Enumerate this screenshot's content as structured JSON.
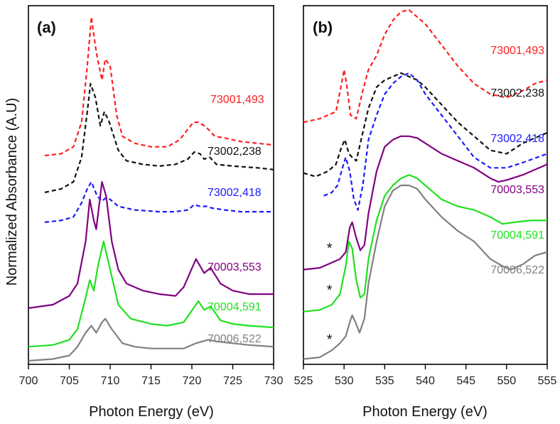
{
  "chart_data": [
    {
      "type": "line",
      "panel_label": "(a)",
      "xlabel": "Photon Energy (eV)",
      "ylabel": "Normalized Absorbance (A.U)",
      "xlim": [
        700,
        730
      ],
      "ylim": [
        0,
        100
      ],
      "xticks": [
        "700",
        "705",
        "710",
        "715",
        "720",
        "725",
        "730"
      ],
      "yticks_visible": false,
      "series": [
        {
          "name": "73001,493",
          "color": "#ff2020",
          "dash": true,
          "x": [
            702,
            704,
            705.5,
            706.5,
            707.2,
            707.7,
            708.3,
            709,
            709.4,
            710,
            710.8,
            711.5,
            713,
            715,
            717,
            718.5,
            719.5,
            720.2,
            720.8,
            721.5,
            722,
            722.8,
            724,
            726,
            728,
            730
          ],
          "y": [
            58.5,
            59,
            61,
            68,
            84,
            98,
            88,
            80,
            86,
            84,
            70,
            64,
            62,
            61,
            61,
            63,
            66,
            68,
            68,
            67,
            66,
            64,
            63.5,
            62.5,
            62,
            61.5
          ]
        },
        {
          "name": "73002,238",
          "color": "#111111",
          "dash": true,
          "x": [
            702,
            704,
            705.5,
            706.5,
            707.2,
            707.6,
            708.2,
            708.8,
            709.3,
            709.9,
            711,
            712,
            714,
            716,
            718,
            719.5,
            720.3,
            721,
            721.5,
            722.2,
            723,
            725,
            728,
            730
          ],
          "y": [
            48,
            49,
            51,
            58,
            71,
            79,
            75,
            67,
            71,
            68,
            60,
            57,
            56,
            55.5,
            56,
            57.5,
            59.5,
            59,
            57.5,
            58,
            56,
            55.5,
            55,
            54.5
          ]
        },
        {
          "name": "73002,418",
          "color": "#1a1aff",
          "dash": true,
          "x": [
            702,
            704,
            705.5,
            706.5,
            707.2,
            707.7,
            708.4,
            709,
            709.5,
            710,
            711,
            713,
            716,
            718,
            719.5,
            720.3,
            721,
            721.8,
            722.5,
            724,
            726,
            728,
            730
          ],
          "y": [
            39.5,
            40,
            41,
            45,
            49,
            51,
            47,
            45.5,
            46.5,
            46,
            44,
            43,
            42.5,
            42.5,
            43,
            44.5,
            44,
            44,
            43.5,
            43,
            42.5,
            42.5,
            42.5
          ]
        },
        {
          "name": "70003,553",
          "color": "#800080",
          "dash": false,
          "x": [
            700,
            703,
            705,
            706,
            707,
            707.5,
            708,
            708.3,
            709,
            709.5,
            710.2,
            711,
            712,
            714,
            716,
            718,
            719,
            720.5,
            721.5,
            722.3,
            723.5,
            725,
            727,
            730
          ],
          "y": [
            15,
            16,
            18.5,
            22,
            34,
            46,
            40,
            37.5,
            51,
            47,
            34,
            26,
            22,
            20,
            19,
            18.5,
            21,
            29,
            25,
            26.5,
            22,
            20,
            19,
            19
          ]
        },
        {
          "name": "70004,591",
          "color": "#20e020",
          "dash": false,
          "x": [
            700,
            703,
            705,
            706,
            707,
            707.5,
            708,
            708.5,
            709.2,
            709.8,
            711,
            712.5,
            715,
            717,
            719,
            720.8,
            721.5,
            722.3,
            723.5,
            725,
            727,
            730
          ],
          "y": [
            4,
            4.5,
            6,
            9,
            18,
            23,
            20,
            27,
            34,
            28,
            16,
            12,
            10.5,
            10,
            11,
            17,
            14.5,
            15.5,
            11.5,
            10.5,
            10,
            9.5
          ]
        },
        {
          "name": "70006,522",
          "color": "#808080",
          "dash": false,
          "x": [
            700,
            703,
            705,
            706,
            707,
            707.7,
            708.3,
            709,
            709.4,
            710.2,
            711.5,
            713,
            715,
            717,
            719,
            720.5,
            722,
            723,
            725,
            727,
            730
          ],
          "y": [
            0,
            0.5,
            1.5,
            4,
            8,
            10,
            8,
            11,
            12,
            9,
            5,
            4,
            3.5,
            3.5,
            3.5,
            5,
            6,
            5.5,
            5,
            4.5,
            4
          ]
        }
      ],
      "annotations": []
    },
    {
      "type": "line",
      "panel_label": "(b)",
      "xlabel": "Photon Energy (eV)",
      "xlim": [
        525,
        555
      ],
      "ylim": [
        0,
        100
      ],
      "xticks": [
        "525",
        "530",
        "535",
        "540",
        "545",
        "550",
        "555"
      ],
      "yticks_visible": false,
      "series": [
        {
          "name": "73001,493",
          "color": "#ff2020",
          "dash": true,
          "x": [
            525,
            527,
            529,
            529.7,
            530,
            530.3,
            530.8,
            531.5,
            532.3,
            533,
            534,
            535,
            536,
            537,
            538,
            539,
            540,
            542,
            544,
            546,
            548,
            550,
            552,
            553.5,
            555
          ],
          "y": [
            68,
            69,
            71,
            79,
            83,
            79,
            70,
            69,
            77,
            83,
            87,
            93,
            97,
            99.5,
            100,
            98,
            96,
            90,
            84,
            79,
            76,
            75,
            77,
            79,
            80
          ]
        },
        {
          "name": "73002,238",
          "color": "#111111",
          "dash": true,
          "x": [
            525,
            526.5,
            528,
            529,
            529.7,
            530.1,
            530.6,
            531,
            531.5,
            532,
            533,
            534,
            535,
            536,
            537,
            538,
            539,
            540,
            542,
            544,
            546,
            548,
            550,
            552,
            555
          ],
          "y": [
            53.5,
            52.5,
            54,
            56,
            61,
            63,
            59,
            58,
            57,
            62,
            72,
            78,
            80,
            81,
            82,
            81,
            80,
            78,
            73,
            68,
            64,
            60,
            59,
            62,
            65
          ]
        },
        {
          "name": "73002,418",
          "color": "#1a1aff",
          "dash": true,
          "x": [
            527.5,
            528.5,
            529.2,
            529.8,
            530.2,
            530.7,
            531.2,
            531.7,
            532.3,
            533,
            534,
            535,
            536,
            537,
            538,
            539,
            540,
            542,
            544,
            546,
            548,
            550,
            552,
            555
          ],
          "y": [
            47,
            48,
            50,
            55,
            58,
            54,
            46,
            43,
            50,
            63,
            70,
            76,
            79,
            81,
            82,
            80,
            76,
            70,
            64,
            58,
            55,
            55,
            56.5,
            59
          ]
        },
        {
          "name": "70003,553",
          "color": "#800080",
          "dash": false,
          "x": [
            525,
            527,
            528.5,
            529.5,
            530.2,
            530.7,
            531,
            531.5,
            532,
            532.5,
            533,
            534,
            535,
            536,
            537,
            538,
            539,
            540,
            542,
            544,
            546,
            548,
            549,
            550,
            552,
            555
          ],
          "y": [
            26,
            26.5,
            28,
            29,
            31,
            38,
            39.5,
            35,
            31.5,
            33,
            42,
            54,
            61,
            63,
            64,
            64,
            63.5,
            62,
            59,
            57,
            55,
            52,
            51,
            51.5,
            53,
            56
          ]
        },
        {
          "name": "70004,591",
          "color": "#20e020",
          "dash": false,
          "x": [
            525,
            527,
            528.5,
            529.5,
            530.2,
            530.6,
            531,
            531.5,
            532,
            532.5,
            533,
            534,
            535,
            536,
            537,
            538,
            539,
            540,
            542,
            544,
            546,
            548,
            549.5,
            551,
            553,
            555
          ],
          "y": [
            14,
            14.5,
            16,
            19,
            27,
            34,
            32,
            23,
            18,
            19,
            29,
            40,
            47,
            50,
            52,
            53,
            52,
            50,
            46,
            44,
            43,
            41,
            39,
            39.5,
            40,
            40
          ]
        },
        {
          "name": "70006,522",
          "color": "#808080",
          "dash": false,
          "x": [
            525,
            527,
            528.5,
            529.5,
            530.2,
            530.7,
            531,
            531.4,
            531.9,
            532.5,
            533,
            534,
            535,
            536,
            537,
            538,
            539,
            540,
            542,
            544,
            546,
            548,
            549.5,
            550.5,
            552,
            553.5,
            555
          ],
          "y": [
            0.5,
            1,
            3,
            5,
            7,
            11,
            13,
            11,
            8,
            12,
            22,
            34,
            44,
            48.5,
            50,
            50,
            49,
            46,
            41,
            37,
            34,
            29,
            27,
            26,
            27.5,
            30,
            31
          ]
        }
      ],
      "annotations": [
        {
          "text": "*",
          "x": 528.2,
          "y": 32
        },
        {
          "text": "*",
          "x": 528.2,
          "y": 20
        },
        {
          "text": "*",
          "x": 528.2,
          "y": 6
        }
      ]
    }
  ]
}
